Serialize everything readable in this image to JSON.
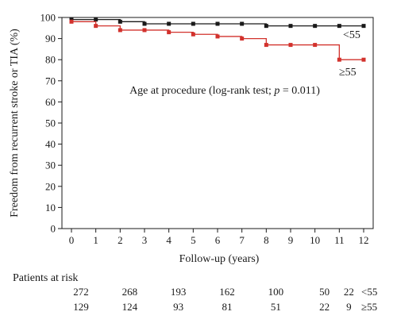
{
  "chart_data": {
    "type": "line",
    "ylabel": "Freedom from recurrent stroke or TIA (%)",
    "xlabel": "Follow-up (years)",
    "annotation_prefix": "Age at procedure (log-rank test; ",
    "annotation_p": "p",
    "annotation_suffix": " = 0.011)",
    "xlim": [
      0,
      12
    ],
    "ylim": [
      0,
      100
    ],
    "x_ticks": [
      0,
      1,
      2,
      3,
      4,
      5,
      6,
      7,
      8,
      9,
      10,
      11,
      12
    ],
    "y_ticks": [
      0,
      10,
      20,
      30,
      40,
      50,
      60,
      70,
      80,
      90,
      100
    ],
    "grid": false,
    "series": [
      {
        "name": "<55",
        "color": "#1a1a1a",
        "marker": "square",
        "x": [
          0,
          1,
          2,
          3,
          4,
          5,
          6,
          7,
          8,
          9,
          10,
          11,
          12
        ],
        "y": [
          99,
          99,
          98,
          97,
          97,
          97,
          97,
          97,
          96,
          96,
          96,
          96,
          96
        ]
      },
      {
        "name": "≥55",
        "color": "#d2322d",
        "marker": "square",
        "x": [
          0,
          1,
          2,
          3,
          4,
          5,
          6,
          7,
          8,
          9,
          10,
          11,
          12
        ],
        "y": [
          98,
          96,
          94,
          94,
          93,
          92,
          91,
          90,
          87,
          87,
          87,
          80,
          80
        ]
      }
    ],
    "risk_table": {
      "title": "Patients at risk",
      "rows": [
        {
          "label": "<55",
          "values": [
            272,
            268,
            193,
            162,
            100,
            50,
            22
          ]
        },
        {
          "label": "≥55",
          "values": [
            129,
            124,
            93,
            81,
            51,
            22,
            9
          ]
        }
      ]
    }
  }
}
